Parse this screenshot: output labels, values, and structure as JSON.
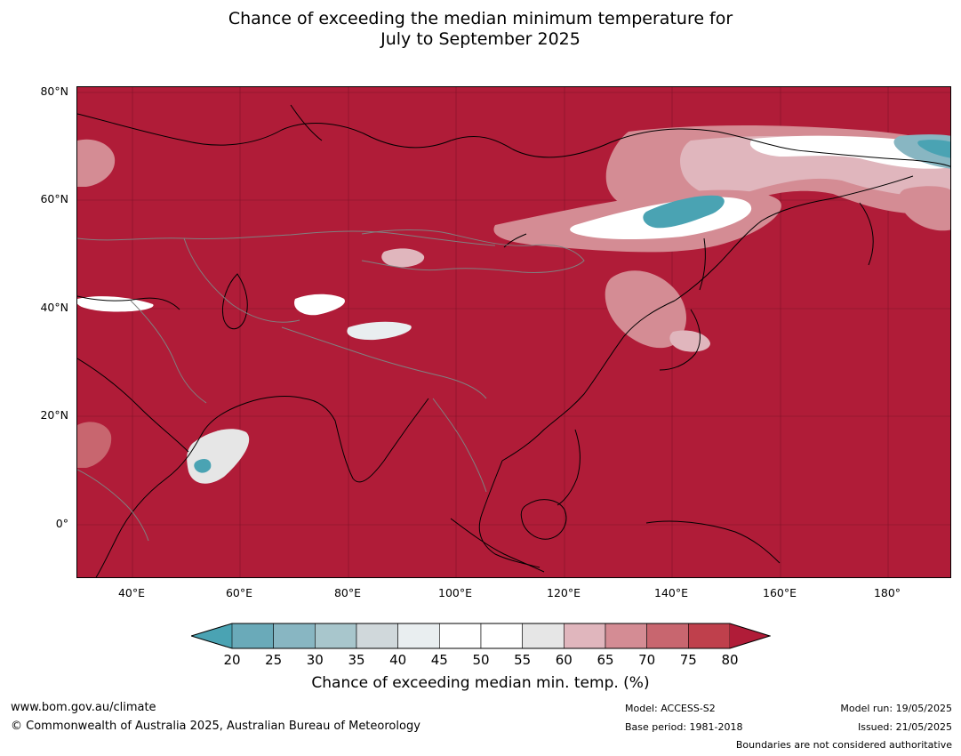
{
  "title_line1": "Chance of exceeding the median minimum temperature for",
  "title_line2": "July to September 2025",
  "map": {
    "lon_range": [
      30,
      192
    ],
    "lat_range": [
      -10,
      81
    ],
    "lat_labels": [
      "80°N",
      "60°N",
      "40°N",
      "20°N",
      "0°"
    ],
    "lon_labels": [
      "40°E",
      "60°E",
      "80°E",
      "100°E",
      "120°E",
      "140°E",
      "160°E",
      "180°"
    ],
    "colors": {
      "dominant": "#b01c38",
      "border_lines": "#808080",
      "coastline": "#000000"
    }
  },
  "colorbar": {
    "ticks": [
      "20",
      "25",
      "30",
      "35",
      "40",
      "45",
      "50",
      "55",
      "60",
      "65",
      "70",
      "75",
      "80"
    ],
    "colors": [
      "#4aa3b3",
      "#6aaab9",
      "#88b6c2",
      "#a8c6cc",
      "#d0d8db",
      "#e9eef0",
      "#ffffff",
      "#ffffff",
      "#e6e6e6",
      "#e0b6bd",
      "#d48c94",
      "#c8666f",
      "#bf404c",
      "#b01c38"
    ],
    "title": "Chance of exceeding median min. temp. (%)"
  },
  "footer": {
    "website": "www.bom.gov.au/climate",
    "copyright": "© Commonwealth of Australia 2025, Australian Bureau of Meteorology",
    "model": "Model: ACCESS-S2",
    "base_period": "Base period: 1981-2018",
    "model_run": "Model run: 19/05/2025",
    "issued": "Issued: 21/05/2025",
    "disclaimer": "Boundaries are not considered authoritative"
  }
}
